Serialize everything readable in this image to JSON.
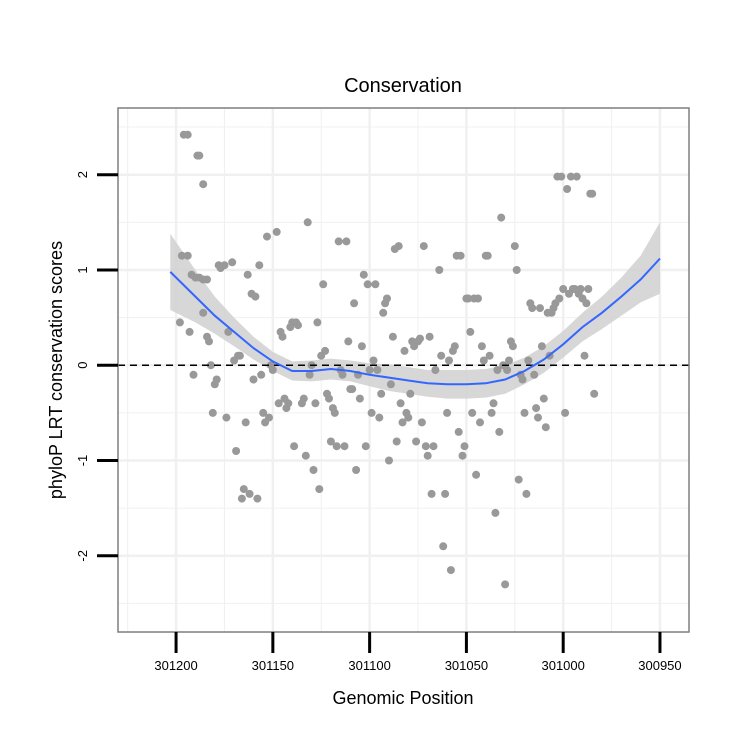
{
  "chart_data": {
    "type": "scatter",
    "title": "Conservation",
    "xlabel": "Genomic Position",
    "ylabel": "phyloP LRT conservation scores",
    "xlim": [
      301230,
      300935
    ],
    "ylim": [
      -2.8,
      2.7
    ],
    "x_reversed": true,
    "x_ticks": [
      301200,
      301150,
      301100,
      301050,
      301000,
      300950
    ],
    "x_tick_labels": [
      "301200",
      "301150",
      "301100",
      "301050",
      "301000",
      "300950"
    ],
    "y_ticks": [
      2,
      1,
      0,
      -1,
      -2
    ],
    "y_tick_labels": [
      "2",
      "1",
      "0",
      "-1",
      "-2"
    ],
    "reference_line": {
      "y": 0,
      "style": "dashed"
    },
    "grid": true,
    "colors": {
      "points": "#999999",
      "smooth": "#3366ff",
      "band": "#d0d0d0",
      "frame": "#7f7f7f",
      "grid": "#f0f0f0"
    },
    "points": [
      [
        301196,
        2.42
      ],
      [
        301194,
        2.42
      ],
      [
        301189,
        2.2
      ],
      [
        301188,
        2.2
      ],
      [
        301186,
        1.9
      ],
      [
        301197,
        1.15
      ],
      [
        301194,
        1.15
      ],
      [
        301192,
        0.95
      ],
      [
        301190,
        0.92
      ],
      [
        301188,
        0.92
      ],
      [
        301186,
        0.9
      ],
      [
        301184,
        0.9
      ],
      [
        301198,
        0.45
      ],
      [
        301193,
        0.35
      ],
      [
        301191,
        -0.1
      ],
      [
        301186,
        0.55
      ],
      [
        301184,
        0.3
      ],
      [
        301183,
        0.25
      ],
      [
        301182,
        0.0
      ],
      [
        301181,
        -0.5
      ],
      [
        301180,
        -0.2
      ],
      [
        301179,
        -0.15
      ],
      [
        301178,
        1.05
      ],
      [
        301177,
        1.02
      ],
      [
        301175,
        1.05
      ],
      [
        301174,
        -0.55
      ],
      [
        301173,
        0.35
      ],
      [
        301171,
        1.08
      ],
      [
        301170,
        0.05
      ],
      [
        301169,
        -0.9
      ],
      [
        301168,
        0.1
      ],
      [
        301167,
        0.1
      ],
      [
        301166,
        -1.4
      ],
      [
        301165,
        -1.3
      ],
      [
        301164,
        -0.6
      ],
      [
        301163,
        0.95
      ],
      [
        301162,
        -1.35
      ],
      [
        301161,
        0.75
      ],
      [
        301160,
        -0.15
      ],
      [
        301159,
        0.72
      ],
      [
        301158,
        -1.4
      ],
      [
        301157,
        1.05
      ],
      [
        301156,
        -0.1
      ],
      [
        301155,
        -0.5
      ],
      [
        301154,
        -0.6
      ],
      [
        301153,
        1.35
      ],
      [
        301152,
        -0.55
      ],
      [
        301151,
        0.0
      ],
      [
        301150,
        -0.05
      ],
      [
        301148,
        1.4
      ],
      [
        301147,
        -0.4
      ],
      [
        301146,
        0.35
      ],
      [
        301145,
        0.3
      ],
      [
        301144,
        -0.35
      ],
      [
        301143,
        -0.45
      ],
      [
        301142,
        -0.4
      ],
      [
        301141,
        0.4
      ],
      [
        301140,
        0.45
      ],
      [
        301139,
        -0.85
      ],
      [
        301138,
        0.45
      ],
      [
        301137,
        0.42
      ],
      [
        301135,
        -0.4
      ],
      [
        301134,
        -0.35
      ],
      [
        301133,
        -0.95
      ],
      [
        301132,
        1.5
      ],
      [
        301131,
        -0.1
      ],
      [
        301130,
        0.0
      ],
      [
        301129,
        -1.1
      ],
      [
        301128,
        -0.4
      ],
      [
        301127,
        0.45
      ],
      [
        301126,
        -1.3
      ],
      [
        301125,
        0.1
      ],
      [
        301124,
        0.85
      ],
      [
        301123,
        0.15
      ],
      [
        301122,
        -0.3
      ],
      [
        301121,
        -0.35
      ],
      [
        301120,
        -0.8
      ],
      [
        301119,
        -0.45
      ],
      [
        301118,
        -0.5
      ],
      [
        301117,
        -0.85
      ],
      [
        301116,
        1.3
      ],
      [
        301115,
        -0.05
      ],
      [
        301114,
        -0.1
      ],
      [
        301113,
        -0.85
      ],
      [
        301112,
        1.3
      ],
      [
        301111,
        0.25
      ],
      [
        301110,
        -0.25
      ],
      [
        301109,
        -0.25
      ],
      [
        301108,
        0.65
      ],
      [
        301107,
        -1.1
      ],
      [
        301106,
        -0.1
      ],
      [
        301105,
        -0.35
      ],
      [
        301104,
        0.2
      ],
      [
        301103,
        0.95
      ],
      [
        301102,
        -0.85
      ],
      [
        301101,
        0.85
      ],
      [
        301100,
        -0.05
      ],
      [
        301099,
        -0.5
      ],
      [
        301098,
        0.05
      ],
      [
        301097,
        0.85
      ],
      [
        301096,
        -0.05
      ],
      [
        301095,
        -0.55
      ],
      [
        301094,
        -0.3
      ],
      [
        301093,
        0.55
      ],
      [
        301092,
        0.65
      ],
      [
        301091,
        0.7
      ],
      [
        301090,
        -1.0
      ],
      [
        301089,
        -0.2
      ],
      [
        301088,
        0.3
      ],
      [
        301087,
        1.22
      ],
      [
        301086,
        -0.8
      ],
      [
        301085,
        1.25
      ],
      [
        301084,
        -0.4
      ],
      [
        301083,
        -0.6
      ],
      [
        301082,
        0.15
      ],
      [
        301081,
        -0.5
      ],
      [
        301080,
        -0.55
      ],
      [
        301079,
        -0.3
      ],
      [
        301078,
        0.25
      ],
      [
        301077,
        0.2
      ],
      [
        301076,
        -0.8
      ],
      [
        301075,
        0.25
      ],
      [
        301074,
        0.28
      ],
      [
        301073,
        -0.6
      ],
      [
        301072,
        1.25
      ],
      [
        301071,
        -0.85
      ],
      [
        301070,
        -0.95
      ],
      [
        301069,
        0.3
      ],
      [
        301068,
        -1.35
      ],
      [
        301067,
        -0.85
      ],
      [
        301066,
        -0.05
      ],
      [
        301064,
        1.0
      ],
      [
        301063,
        0.1
      ],
      [
        301062,
        -1.9
      ],
      [
        301061,
        -1.35
      ],
      [
        301060,
        -0.5
      ],
      [
        301059,
        0.05
      ],
      [
        301058,
        -2.15
      ],
      [
        301057,
        0.15
      ],
      [
        301056,
        0.2
      ],
      [
        301055,
        1.15
      ],
      [
        301054,
        -0.7
      ],
      [
        301053,
        1.15
      ],
      [
        301052,
        -0.95
      ],
      [
        301051,
        -0.85
      ],
      [
        301050,
        0.7
      ],
      [
        301049,
        0.7
      ],
      [
        301048,
        0.35
      ],
      [
        301047,
        -0.5
      ],
      [
        301046,
        0.7
      ],
      [
        301045,
        -1.15
      ],
      [
        301044,
        0.7
      ],
      [
        301043,
        -0.6
      ],
      [
        301042,
        0.2
      ],
      [
        301041,
        0.05
      ],
      [
        301040,
        1.15
      ],
      [
        301039,
        1.15
      ],
      [
        301038,
        0.1
      ],
      [
        301037,
        -0.5
      ],
      [
        301036,
        -0.4
      ],
      [
        301035,
        -1.55
      ],
      [
        301034,
        -0.05
      ],
      [
        301033,
        -0.7
      ],
      [
        301032,
        1.55
      ],
      [
        301031,
        0.0
      ],
      [
        301030,
        -2.3
      ],
      [
        301029,
        -0.05
      ],
      [
        301028,
        0.05
      ],
      [
        301027,
        0.25
      ],
      [
        301026,
        0.2
      ],
      [
        301025,
        1.25
      ],
      [
        301024,
        1.0
      ],
      [
        301023,
        -1.2
      ],
      [
        301022,
        -0.1
      ],
      [
        301021,
        -0.15
      ],
      [
        301020,
        -0.5
      ],
      [
        301019,
        -1.35
      ],
      [
        301018,
        0.05
      ],
      [
        301017,
        0.65
      ],
      [
        301016,
        0.6
      ],
      [
        301015,
        -0.1
      ],
      [
        301014,
        -0.45
      ],
      [
        301013,
        -0.55
      ],
      [
        301012,
        0.6
      ],
      [
        301011,
        0.2
      ],
      [
        301010,
        -0.35
      ],
      [
        301009,
        -0.65
      ],
      [
        301008,
        0.55
      ],
      [
        301007,
        0.1
      ],
      [
        301006,
        0.55
      ],
      [
        301005,
        0.6
      ],
      [
        301004,
        0.65
      ],
      [
        301003,
        1.98
      ],
      [
        301002,
        0.7
      ],
      [
        301001,
        1.98
      ],
      [
        301000,
        0.8
      ],
      [
        300999,
        -0.5
      ],
      [
        300998,
        1.85
      ],
      [
        300997,
        0.75
      ],
      [
        300996,
        1.98
      ],
      [
        300995,
        0.8
      ],
      [
        300994,
        0.8
      ],
      [
        300993,
        1.98
      ],
      [
        300992,
        0.75
      ],
      [
        300991,
        0.8
      ],
      [
        300990,
        0.7
      ],
      [
        300989,
        0.1
      ],
      [
        300988,
        0.65
      ],
      [
        300987,
        0.8
      ],
      [
        300986,
        1.8
      ],
      [
        300985,
        1.8
      ],
      [
        300984,
        -0.3
      ]
    ],
    "smooth": {
      "x": [
        301203,
        301190,
        301180,
        301170,
        301160,
        301150,
        301140,
        301130,
        301120,
        301110,
        301100,
        301090,
        301080,
        301070,
        301060,
        301050,
        301040,
        301030,
        301020,
        301010,
        301000,
        300990,
        300980,
        300970,
        300960,
        300950
      ],
      "y": [
        0.98,
        0.72,
        0.52,
        0.35,
        0.18,
        0.04,
        -0.06,
        -0.06,
        -0.04,
        -0.06,
        -0.1,
        -0.13,
        -0.16,
        -0.19,
        -0.2,
        -0.2,
        -0.19,
        -0.15,
        -0.06,
        0.06,
        0.22,
        0.4,
        0.55,
        0.72,
        0.9,
        1.12
      ],
      "lo": [
        0.58,
        0.45,
        0.33,
        0.2,
        0.06,
        -0.06,
        -0.16,
        -0.17,
        -0.15,
        -0.17,
        -0.22,
        -0.27,
        -0.3,
        -0.33,
        -0.35,
        -0.35,
        -0.34,
        -0.3,
        -0.2,
        -0.08,
        0.08,
        0.25,
        0.38,
        0.52,
        0.66,
        0.75
      ],
      "hi": [
        1.38,
        1.0,
        0.72,
        0.5,
        0.3,
        0.14,
        0.04,
        0.05,
        0.07,
        0.05,
        0.02,
        0.01,
        -0.02,
        -0.05,
        -0.05,
        -0.05,
        -0.04,
        0.0,
        0.08,
        0.2,
        0.36,
        0.55,
        0.72,
        0.92,
        1.15,
        1.5
      ]
    }
  }
}
